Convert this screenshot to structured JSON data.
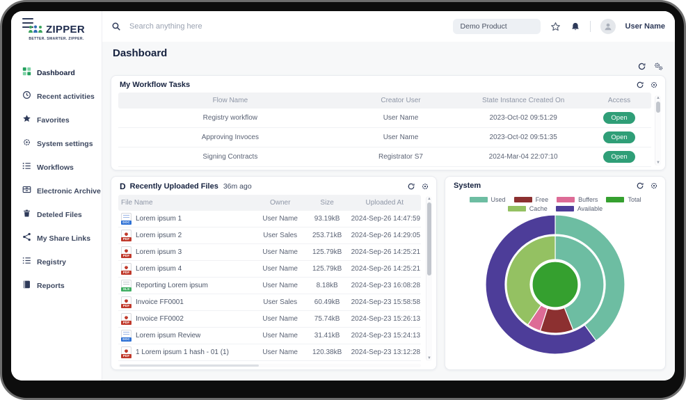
{
  "brand": {
    "name": "ZIPPER",
    "tagline": "BETTER. SMARTER. ZIPPER."
  },
  "topbar": {
    "search_placeholder": "Search anything here",
    "product": "Demo Product",
    "user": "User Name"
  },
  "page": {
    "title": "Dashboard"
  },
  "sidebar": {
    "items": [
      {
        "label": "Dashboard",
        "icon": "dashboard",
        "active": true
      },
      {
        "label": "Recent activities",
        "icon": "clock",
        "active": false
      },
      {
        "label": "Favorites",
        "icon": "star",
        "active": false
      },
      {
        "label": "System settings",
        "icon": "gear",
        "active": false
      },
      {
        "label": "Workflows",
        "icon": "workflow",
        "active": false
      },
      {
        "label": "Electronic Archive",
        "icon": "archive",
        "active": false
      },
      {
        "label": "Deteled Files",
        "icon": "trash",
        "active": false
      },
      {
        "label": "My Share Links",
        "icon": "share",
        "active": false
      },
      {
        "label": "Registry",
        "icon": "list",
        "active": false
      },
      {
        "label": "Reports",
        "icon": "book",
        "active": false
      }
    ]
  },
  "workflow_card": {
    "title": "My Workflow Tasks",
    "columns": [
      "Flow Name",
      "Creator User",
      "State Instance Created On",
      "Access"
    ],
    "rows": [
      {
        "flow": "Registry workflow",
        "creator": "User Name",
        "created": "2023-Oct-02 09:51:29",
        "action": "Open"
      },
      {
        "flow": "Approving Invoces",
        "creator": "User Name",
        "created": "2023-Oct-02 09:51:35",
        "action": "Open"
      },
      {
        "flow": "Signing Contracts",
        "creator": "Registrator S7",
        "created": "2024-Mar-04 22:07:10",
        "action": "Open"
      }
    ]
  },
  "files_card": {
    "badge": "D",
    "title": "Recently Uploaded Files",
    "ago": "36m ago",
    "columns": [
      "File Name",
      "Owner",
      "Size",
      "Uploaded At"
    ],
    "rows": [
      {
        "name": "Lorem ipsum 1",
        "type": "doc",
        "owner": "User Name",
        "size": "93.19kB",
        "uploaded": "2024-Sep-26 14:47:59"
      },
      {
        "name": "Lorem ipsum 2",
        "type": "pdf",
        "owner": "User Sales",
        "size": "253.71kB",
        "uploaded": "2024-Sep-26 14:29:05"
      },
      {
        "name": "Lorem ipsum 3",
        "type": "pdf",
        "owner": "User Name",
        "size": "125.79kB",
        "uploaded": "2024-Sep-26 14:25:21"
      },
      {
        "name": "Lorem ipsum 4",
        "type": "pdf",
        "owner": "User Name",
        "size": "125.79kB",
        "uploaded": "2024-Sep-26 14:25:21"
      },
      {
        "name": "Reporting Lorem ipsum",
        "type": "xls",
        "owner": "User Name",
        "size": "8.18kB",
        "uploaded": "2024-Sep-23 16:08:28"
      },
      {
        "name": "Invoice FF0001",
        "type": "pdf",
        "owner": "User Sales",
        "size": "60.49kB",
        "uploaded": "2024-Sep-23 15:58:58"
      },
      {
        "name": "Invoice FF0002",
        "type": "pdf",
        "owner": "User Name",
        "size": "75.74kB",
        "uploaded": "2024-Sep-23 15:26:13"
      },
      {
        "name": "Lorem ipsum Review",
        "type": "doc",
        "owner": "User Name",
        "size": "31.41kB",
        "uploaded": "2024-Sep-23 15:24:13"
      },
      {
        "name": "1 Lorem ipsum 1 hash - 01 (1)",
        "type": "pdf",
        "owner": "User Name",
        "size": "120.38kB",
        "uploaded": "2024-Sep-23 13:12:28"
      }
    ]
  },
  "system_card": {
    "title": "System"
  },
  "chart_data": {
    "type": "sunburst",
    "title": "System",
    "legend_position": "top",
    "legend": [
      {
        "label": "Used",
        "color": "#6dbda2"
      },
      {
        "label": "Free",
        "color": "#8c3030"
      },
      {
        "label": "Buffers",
        "color": "#dd6b96"
      },
      {
        "label": "Total",
        "color": "#35a02f"
      },
      {
        "label": "Cache",
        "color": "#94c162"
      },
      {
        "label": "Available",
        "color": "#4d3d99"
      }
    ],
    "start_angle_deg": 0,
    "direction": "clockwise",
    "rings": [
      {
        "name": "outer",
        "r_inner": 72,
        "r_outer": 100,
        "segments": [
          {
            "label": "Used",
            "value": 40,
            "color": "#6dbda2"
          },
          {
            "label": "Available",
            "value": 60,
            "color": "#4d3d99"
          }
        ]
      },
      {
        "name": "middle",
        "r_inner": 36,
        "r_outer": 70,
        "segments": [
          {
            "label": "Used",
            "value": 44,
            "color": "#6dbda2"
          },
          {
            "label": "Free",
            "value": 11,
            "color": "#8c3030"
          },
          {
            "label": "Buffers",
            "value": 4.5,
            "color": "#dd6b96"
          },
          {
            "label": "Cache",
            "value": 40.5,
            "color": "#94c162"
          }
        ]
      },
      {
        "name": "center",
        "r_inner": 0,
        "r_outer": 33,
        "segments": [
          {
            "label": "Total",
            "value": 100,
            "color": "#35a02f"
          }
        ]
      }
    ]
  },
  "colors": {
    "accent_green": "#2f9e77",
    "navy": "#1e2b4d",
    "bg": "#f7f8f9"
  }
}
